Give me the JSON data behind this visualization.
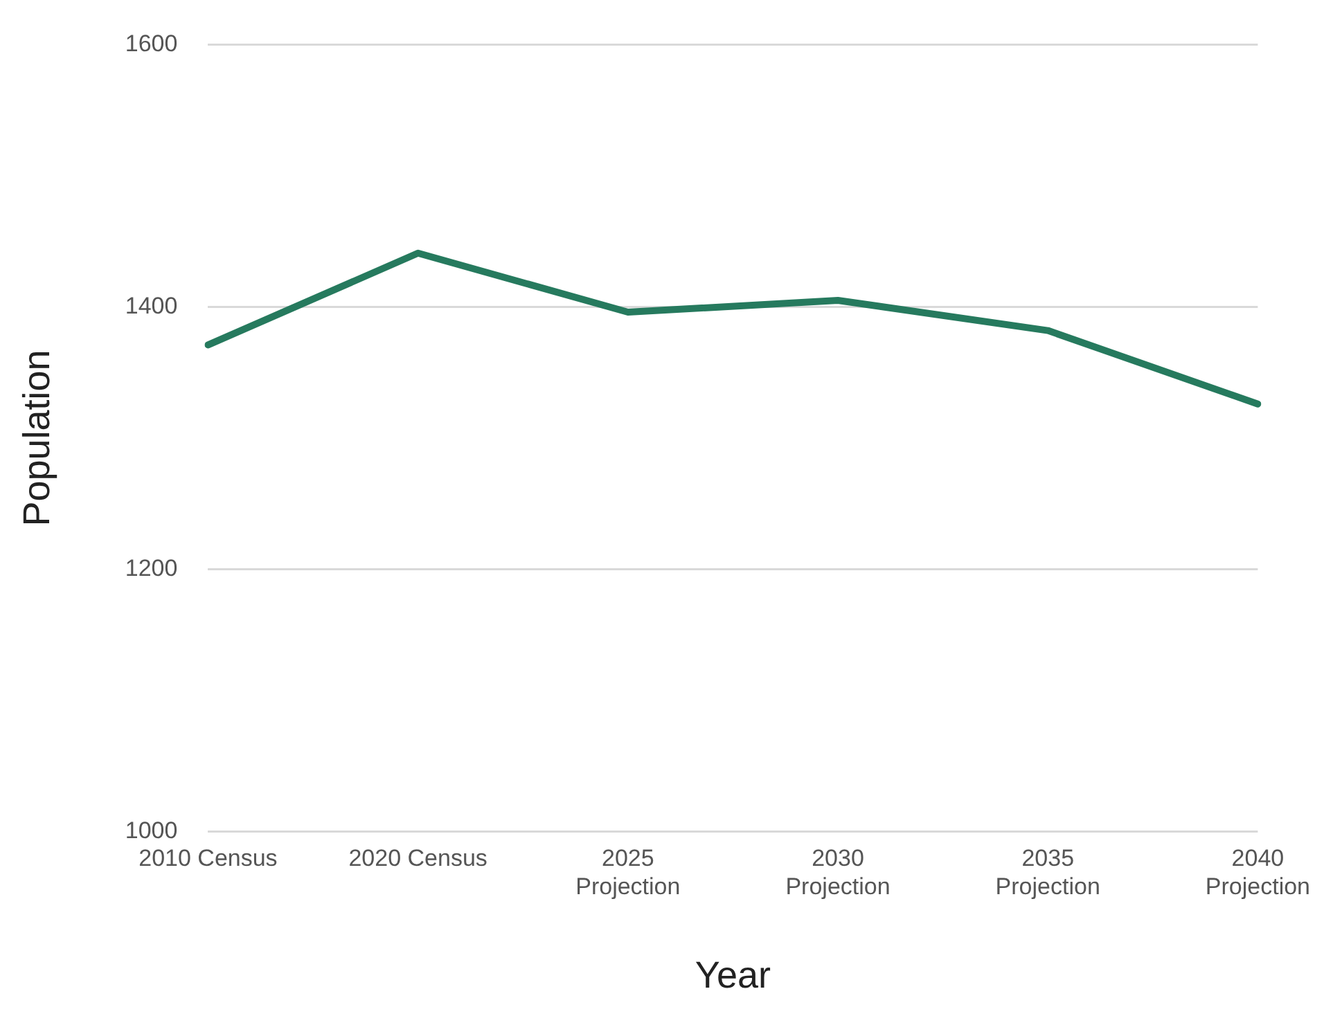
{
  "chart_data": {
    "type": "line",
    "xlabel": "Year",
    "ylabel": "Population",
    "categories": [
      "2010 Census",
      "2020 Census",
      "2025 Projection",
      "2030 Projection",
      "2035 Projection",
      "2040 Projection"
    ],
    "series": [
      {
        "color": "#267a5e",
        "values": [
          1371,
          1441,
          1396,
          1405,
          1382,
          1326
        ]
      }
    ],
    "ylim": [
      1000,
      1600
    ],
    "yticks": [
      1000,
      1200,
      1400,
      1600
    ],
    "grid": "y",
    "legend": false,
    "marker": "none",
    "line_style": "solid"
  }
}
